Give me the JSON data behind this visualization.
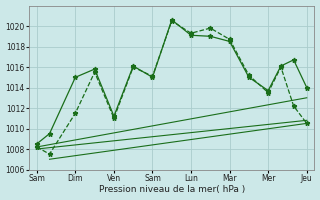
{
  "xlabel": "Pression niveau de la mer( hPa )",
  "background_color": "#cce8e8",
  "grid_color": "#aacccc",
  "line_color": "#1a6e1a",
  "ylim": [
    1006,
    1022
  ],
  "yticks": [
    1006,
    1008,
    1010,
    1012,
    1014,
    1016,
    1018,
    1020
  ],
  "xlim": [
    -0.2,
    7.2
  ],
  "x_tick_positions": [
    0,
    1,
    2,
    3,
    4,
    5,
    6,
    7
  ],
  "x_tick_labels": [
    "Sam",
    "Dim",
    "Ven",
    "Sam",
    "Lun",
    "Mar",
    "Mer",
    "Jeu"
  ],
  "series1_x": [
    0.0,
    0.33,
    1.0,
    1.5,
    2.0,
    2.5,
    3.0,
    3.5,
    4.0,
    4.5,
    5.0,
    5.5,
    6.0,
    6.33,
    6.66,
    7.0
  ],
  "series1_y": [
    1008.5,
    1009.5,
    1015.0,
    1015.8,
    1011.2,
    1016.1,
    1015.0,
    1020.6,
    1019.1,
    1019.0,
    1018.5,
    1015.0,
    1013.7,
    1016.1,
    1016.7,
    1014.0
  ],
  "series2_x": [
    0.0,
    0.33,
    1.0,
    1.5,
    2.0,
    2.5,
    3.0,
    3.5,
    4.0,
    4.5,
    5.0,
    5.5,
    6.0,
    6.33,
    6.66,
    7.0
  ],
  "series2_y": [
    1008.2,
    1007.5,
    1011.5,
    1015.5,
    1011.0,
    1016.0,
    1015.1,
    1020.5,
    1019.3,
    1019.8,
    1018.7,
    1015.2,
    1013.5,
    1016.0,
    1012.2,
    1010.5
  ],
  "trend1_x": [
    0.0,
    7.0
  ],
  "trend1_y": [
    1008.2,
    1013.0
  ],
  "trend2_x": [
    0.0,
    7.0
  ],
  "trend2_y": [
    1008.0,
    1010.8
  ],
  "trend3_x": [
    0.33,
    7.0
  ],
  "trend3_y": [
    1007.0,
    1010.5
  ]
}
